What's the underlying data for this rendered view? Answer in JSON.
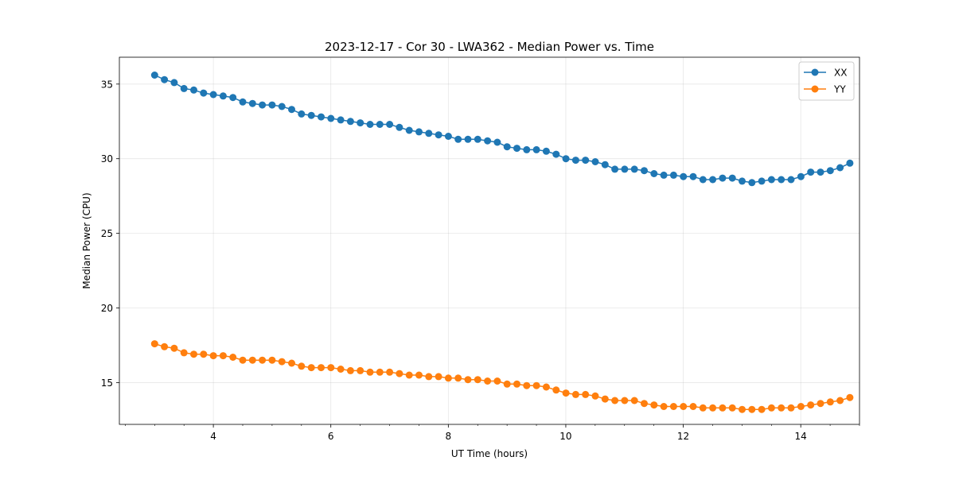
{
  "chart_data": {
    "type": "line",
    "title": "2023-12-17 - Cor 30 - LWA362 - Median Power vs. Time",
    "xlabel": "UT Time (hours)",
    "ylabel": "Median Power (CPU)",
    "xlim": [
      2.4,
      15.0
    ],
    "ylim": [
      12.2,
      36.8
    ],
    "xticks": [
      4,
      6,
      8,
      10,
      12,
      14
    ],
    "yticks": [
      15,
      20,
      25,
      30,
      35
    ],
    "grid": true,
    "legend_position": "top-right",
    "x_start": 3.0,
    "x_step": 0.1667,
    "series": [
      {
        "name": "XX",
        "color": "#1f77b4",
        "marker": "circle",
        "values": [
          35.6,
          35.3,
          35.1,
          34.7,
          34.6,
          34.4,
          34.3,
          34.2,
          34.1,
          33.8,
          33.7,
          33.6,
          33.6,
          33.5,
          33.3,
          33.0,
          32.9,
          32.8,
          32.7,
          32.6,
          32.5,
          32.4,
          32.3,
          32.3,
          32.3,
          32.1,
          31.9,
          31.8,
          31.7,
          31.6,
          31.5,
          31.3,
          31.3,
          31.3,
          31.2,
          31.1,
          30.8,
          30.7,
          30.6,
          30.6,
          30.5,
          30.3,
          30.0,
          29.9,
          29.9,
          29.8,
          29.6,
          29.3,
          29.3,
          29.3,
          29.2,
          29.0,
          28.9,
          28.9,
          28.8,
          28.8,
          28.6,
          28.6,
          28.7,
          28.7,
          28.5,
          28.4,
          28.5,
          28.6,
          28.6,
          28.6,
          28.8,
          29.1,
          29.1,
          29.2,
          29.4,
          29.7
        ]
      },
      {
        "name": "YY",
        "color": "#ff7f0e",
        "marker": "circle",
        "values": [
          17.6,
          17.4,
          17.3,
          17.0,
          16.9,
          16.9,
          16.8,
          16.8,
          16.7,
          16.5,
          16.5,
          16.5,
          16.5,
          16.4,
          16.3,
          16.1,
          16.0,
          16.0,
          16.0,
          15.9,
          15.8,
          15.8,
          15.7,
          15.7,
          15.7,
          15.6,
          15.5,
          15.5,
          15.4,
          15.4,
          15.3,
          15.3,
          15.2,
          15.2,
          15.1,
          15.1,
          14.9,
          14.9,
          14.8,
          14.8,
          14.7,
          14.5,
          14.3,
          14.2,
          14.2,
          14.1,
          13.9,
          13.8,
          13.8,
          13.8,
          13.6,
          13.5,
          13.4,
          13.4,
          13.4,
          13.4,
          13.3,
          13.3,
          13.3,
          13.3,
          13.2,
          13.2,
          13.2,
          13.3,
          13.3,
          13.3,
          13.4,
          13.5,
          13.6,
          13.7,
          13.8,
          14.0
        ]
      }
    ]
  }
}
